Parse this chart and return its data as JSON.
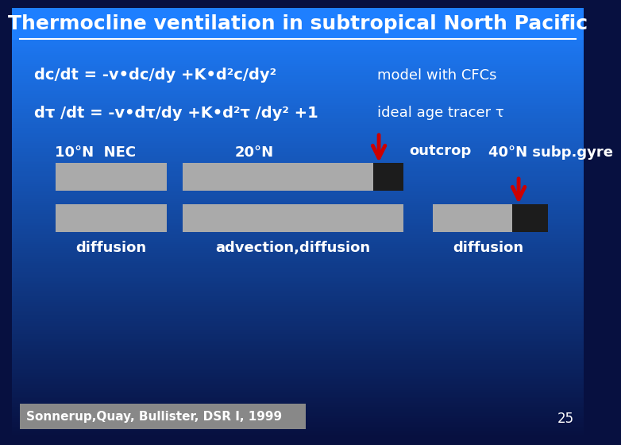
{
  "title": "Thermocline ventilation in subtropical North Pacific",
  "title_fontsize": 18,
  "eq1": "dc/dt = -v•dc/dy +K•d²c/dy²",
  "eq1_right": "model with CFCs",
  "eq2": "dτ /dt = -v•dτ/dy +K•d²τ /dy² +1",
  "eq2_right": "ideal age tracer τ",
  "label_10N": "10°N  NEC",
  "label_20N": "20°N",
  "label_40N": "40°N subp.gyre",
  "label_outcrop": "outcrop",
  "label_diff1": "diffusion",
  "label_adv_diff": "advection,diffusion",
  "label_diff2": "diffusion",
  "citation": "Sonnerup,Quay, Bullister, DSR I, 1999",
  "page_number": "25",
  "gray_color": "#aaaaaa",
  "black_color": "#1c1c1c",
  "arrow_color": "#cc0000",
  "text_color": "#ffffff",
  "citation_bg": "#888888",
  "bg_top": "#1e7fff",
  "bg_bottom": "#071040"
}
